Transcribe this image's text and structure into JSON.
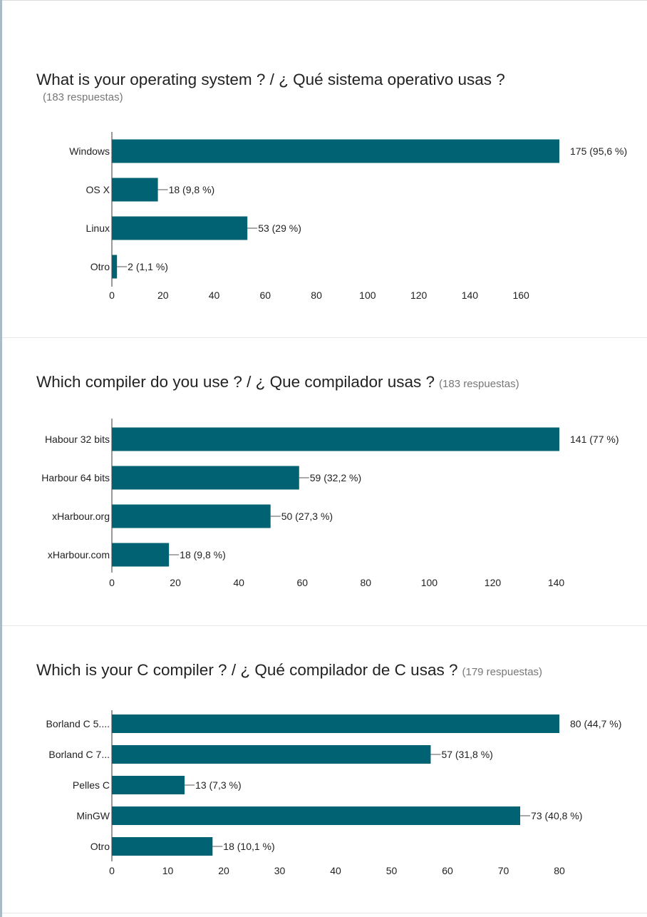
{
  "page": {
    "colors": {
      "bar": "#006272",
      "axis": "#333333",
      "leader": "#555555",
      "label": "#222222"
    }
  },
  "chart_data": [
    {
      "type": "bar",
      "orientation": "horizontal",
      "title": "What is your operating system ? / ¿ Qué sistema operativo usas ?",
      "responses": "(183 respuestas)",
      "categories": [
        "Windows",
        "OS X",
        "Linux",
        "Otro"
      ],
      "values": [
        175,
        18,
        53,
        2
      ],
      "value_labels": [
        "175 (95,6 %)",
        "18 (9,8 %)",
        "53 (29 %)",
        "2 (1,1 %)"
      ],
      "xticks": [
        0,
        20,
        40,
        60,
        80,
        100,
        120,
        140,
        160
      ],
      "xlim": [
        0,
        175
      ]
    },
    {
      "type": "bar",
      "orientation": "horizontal",
      "title": "Which compiler do you use ? / ¿ Que compilador usas ?",
      "responses": "(183 respuestas)",
      "categories": [
        "Habour 32 bits",
        "Harbour 64 bits",
        "xHarbour.org",
        "xHarbour.com"
      ],
      "values": [
        141,
        59,
        50,
        18
      ],
      "value_labels": [
        "141 (77 %)",
        "59 (32,2 %)",
        "50 (27,3 %)",
        "18 (9,8 %)"
      ],
      "xticks": [
        0,
        20,
        40,
        60,
        80,
        100,
        120,
        140
      ],
      "xlim": [
        0,
        141
      ]
    },
    {
      "type": "bar",
      "orientation": "horizontal",
      "title": "Which is your C compiler ? / ¿ Qué compilador de C usas ?",
      "responses": "(179 respuestas)",
      "categories": [
        "Borland C 5....",
        "Borland C 7...",
        "Pelles C",
        "MinGW",
        "Otro"
      ],
      "values": [
        80,
        57,
        13,
        73,
        18
      ],
      "value_labels": [
        "80 (44,7 %)",
        "57 (31,8 %)",
        "13 (7,3 %)",
        "73 (40,8 %)",
        "18 (10,1 %)"
      ],
      "xticks": [
        0,
        10,
        20,
        30,
        40,
        50,
        60,
        70,
        80
      ],
      "xlim": [
        0,
        80
      ]
    }
  ]
}
